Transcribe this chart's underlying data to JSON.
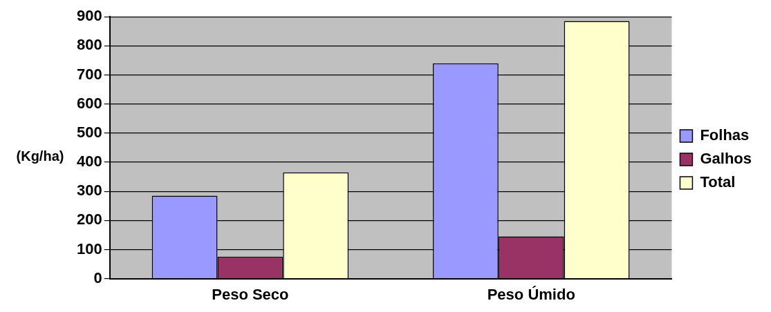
{
  "chart_data": {
    "type": "bar",
    "ylabel": "(Kg/ha)",
    "categories": [
      "Peso Seco",
      "Peso Úmido"
    ],
    "series": [
      {
        "name": "Folhas",
        "color": "#9999ff",
        "values": [
          285,
          740
        ]
      },
      {
        "name": "Galhos",
        "color": "#993366",
        "values": [
          75,
          145
        ]
      },
      {
        "name": "Total",
        "color": "#ffffcc",
        "values": [
          365,
          885
        ]
      }
    ],
    "ylim": [
      0,
      900
    ],
    "yticks": [
      0,
      100,
      200,
      300,
      400,
      500,
      600,
      700,
      800,
      900
    ],
    "grid": "y",
    "legend": "right"
  }
}
